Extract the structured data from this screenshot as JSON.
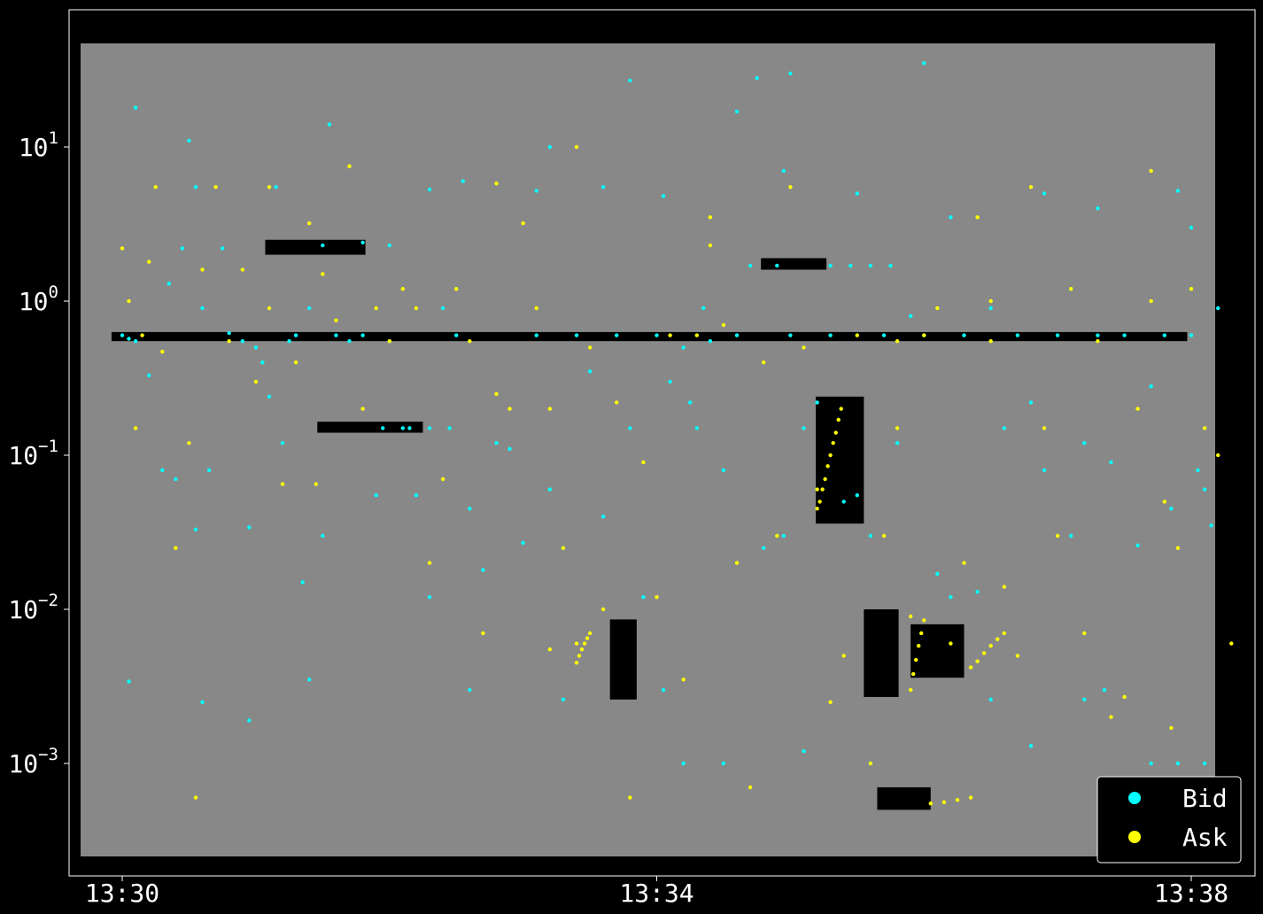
{
  "chart_data": {
    "type": "scatter",
    "title": "",
    "xlabel": "",
    "ylabel": "",
    "x_ticks": [
      "13:30",
      "13:34",
      "13:38"
    ],
    "y_scale": "log",
    "ylim": [
      0.0002,
      70
    ],
    "y_ticks": [
      {
        "value": 10,
        "base": "10",
        "exp": "1"
      },
      {
        "value": 1,
        "base": "10",
        "exp": "0"
      },
      {
        "value": 0.1,
        "base": "10",
        "exp": "−1"
      },
      {
        "value": 0.01,
        "base": "10",
        "exp": "−2"
      },
      {
        "value": 0.001,
        "base": "10",
        "exp": "−3"
      }
    ],
    "xlim_minutes": [
      -0.4,
      8.5
    ],
    "background": "#888888",
    "grid": false,
    "legend_position": "bottom-right",
    "series": [
      {
        "name": "Bid",
        "color": "#00ffff",
        "points": [
          [
            0.0,
            0.6
          ],
          [
            0.05,
            0.57
          ],
          [
            0.1,
            0.55
          ],
          [
            0.2,
            0.33
          ],
          [
            0.3,
            0.08
          ],
          [
            0.35,
            1.3
          ],
          [
            0.4,
            0.07
          ],
          [
            0.45,
            2.2
          ],
          [
            0.5,
            11.0
          ],
          [
            0.55,
            0.033
          ],
          [
            0.6,
            0.9
          ],
          [
            0.65,
            0.08
          ],
          [
            0.75,
            2.2
          ],
          [
            0.8,
            0.62
          ],
          [
            0.9,
            0.55
          ],
          [
            0.95,
            0.034
          ],
          [
            1.0,
            0.5
          ],
          [
            1.05,
            0.4
          ],
          [
            1.1,
            0.24
          ],
          [
            1.2,
            0.12
          ],
          [
            1.25,
            0.55
          ],
          [
            1.3,
            0.6
          ],
          [
            1.35,
            0.015
          ],
          [
            1.4,
            0.9
          ],
          [
            1.5,
            0.03
          ],
          [
            1.55,
            14.0
          ],
          [
            1.6,
            0.6
          ],
          [
            1.7,
            0.55
          ],
          [
            1.8,
            0.6
          ],
          [
            1.9,
            0.055
          ],
          [
            2.0,
            0.55
          ],
          [
            2.1,
            0.15
          ],
          [
            2.2,
            0.055
          ],
          [
            2.3,
            0.012
          ],
          [
            2.4,
            0.9
          ],
          [
            2.5,
            0.6
          ],
          [
            2.6,
            0.045
          ],
          [
            2.7,
            0.018
          ],
          [
            2.8,
            0.12
          ],
          [
            2.9,
            0.11
          ],
          [
            3.0,
            0.027
          ],
          [
            3.1,
            0.6
          ],
          [
            3.2,
            0.06
          ],
          [
            3.3,
            0.025
          ],
          [
            3.4,
            0.6
          ],
          [
            3.5,
            0.35
          ],
          [
            3.6,
            0.04
          ],
          [
            3.7,
            0.6
          ],
          [
            3.8,
            0.15
          ],
          [
            3.9,
            0.012
          ],
          [
            4.0,
            0.6
          ],
          [
            4.05,
            0.003
          ],
          [
            4.1,
            0.3
          ],
          [
            4.2,
            0.5
          ],
          [
            4.25,
            0.22
          ],
          [
            4.3,
            0.15
          ],
          [
            4.35,
            0.9
          ],
          [
            4.4,
            0.55
          ],
          [
            4.5,
            0.08
          ],
          [
            4.6,
            0.6
          ],
          [
            4.7,
            1.7
          ],
          [
            4.8,
            0.025
          ],
          [
            4.9,
            1.7
          ],
          [
            4.95,
            0.03
          ],
          [
            5.0,
            0.6
          ],
          [
            5.1,
            0.15
          ],
          [
            5.2,
            0.22
          ],
          [
            5.3,
            0.6
          ],
          [
            5.4,
            0.05
          ],
          [
            5.5,
            0.055
          ],
          [
            5.6,
            0.03
          ],
          [
            5.7,
            0.6
          ],
          [
            5.8,
            0.12
          ],
          [
            5.9,
            0.8
          ],
          [
            6.0,
            0.6
          ],
          [
            6.1,
            0.017
          ],
          [
            6.2,
            0.012
          ],
          [
            6.3,
            0.6
          ],
          [
            6.4,
            0.013
          ],
          [
            6.5,
            0.9
          ],
          [
            6.6,
            0.15
          ],
          [
            6.7,
            0.6
          ],
          [
            6.8,
            0.22
          ],
          [
            6.9,
            0.08
          ],
          [
            7.0,
            0.6
          ],
          [
            7.1,
            0.03
          ],
          [
            7.2,
            0.12
          ],
          [
            7.3,
            0.6
          ],
          [
            7.35,
            0.003
          ],
          [
            7.4,
            0.09
          ],
          [
            7.5,
            0.6
          ],
          [
            7.6,
            0.026
          ],
          [
            7.7,
            0.28
          ],
          [
            7.8,
            0.6
          ],
          [
            7.85,
            0.045
          ],
          [
            7.9,
            0.001
          ],
          [
            8.0,
            0.6
          ],
          [
            8.05,
            0.08
          ],
          [
            8.1,
            0.06
          ],
          [
            8.15,
            0.035
          ],
          [
            8.2,
            0.9
          ],
          [
            4.6,
            17.0
          ],
          [
            3.2,
            10.0
          ],
          [
            6.0,
            35.0
          ],
          [
            5.0,
            30.0
          ],
          [
            3.8,
            27.0
          ],
          [
            0.1,
            18.0
          ],
          [
            4.75,
            28.0
          ],
          [
            0.55,
            5.5
          ],
          [
            1.15,
            5.5
          ],
          [
            2.3,
            5.3
          ],
          [
            2.55,
            6.0
          ],
          [
            3.1,
            5.2
          ],
          [
            3.6,
            5.5
          ],
          [
            4.05,
            4.8
          ],
          [
            4.95,
            7.0
          ],
          [
            5.5,
            5.0
          ],
          [
            6.2,
            3.5
          ],
          [
            6.9,
            5.0
          ],
          [
            7.3,
            4.0
          ],
          [
            7.9,
            5.2
          ],
          [
            8.0,
            3.0
          ],
          [
            1.8,
            2.4
          ],
          [
            2.0,
            2.3
          ],
          [
            5.3,
            1.7
          ],
          [
            5.45,
            1.7
          ],
          [
            5.6,
            1.7
          ],
          [
            5.75,
            1.7
          ],
          [
            1.5,
            2.3
          ],
          [
            1.95,
            0.15
          ],
          [
            2.15,
            0.15
          ],
          [
            2.3,
            0.15
          ],
          [
            2.45,
            0.15
          ],
          [
            0.6,
            0.0025
          ],
          [
            1.4,
            0.0035
          ],
          [
            2.6,
            0.003
          ],
          [
            3.3,
            0.0026
          ],
          [
            4.5,
            0.001
          ],
          [
            5.1,
            0.0012
          ],
          [
            6.5,
            0.0026
          ],
          [
            7.2,
            0.0026
          ],
          [
            8.1,
            0.001
          ],
          [
            0.05,
            0.0034
          ],
          [
            0.95,
            0.0019
          ],
          [
            4.2,
            0.001
          ],
          [
            5.6,
            0.001
          ],
          [
            6.8,
            0.0013
          ],
          [
            7.7,
            0.001
          ]
        ]
      },
      {
        "name": "Ask",
        "color": "#ffff00",
        "points": [
          [
            0.0,
            2.2
          ],
          [
            0.05,
            1.0
          ],
          [
            0.1,
            0.15
          ],
          [
            0.15,
            0.6
          ],
          [
            0.2,
            1.8
          ],
          [
            0.25,
            5.5
          ],
          [
            0.3,
            0.47
          ],
          [
            0.4,
            0.025
          ],
          [
            0.5,
            0.12
          ],
          [
            0.55,
            0.0006
          ],
          [
            0.6,
            1.6
          ],
          [
            0.7,
            5.5
          ],
          [
            0.8,
            0.55
          ],
          [
            0.9,
            1.6
          ],
          [
            1.0,
            0.3
          ],
          [
            1.1,
            0.9
          ],
          [
            1.2,
            0.065
          ],
          [
            1.3,
            0.4
          ],
          [
            1.4,
            3.2
          ],
          [
            1.45,
            0.065
          ],
          [
            1.5,
            1.5
          ],
          [
            1.6,
            0.75
          ],
          [
            1.7,
            7.5
          ],
          [
            1.8,
            0.2
          ],
          [
            1.9,
            0.9
          ],
          [
            2.0,
            0.55
          ],
          [
            2.1,
            1.2
          ],
          [
            2.2,
            0.9
          ],
          [
            2.3,
            0.02
          ],
          [
            2.4,
            0.07
          ],
          [
            2.5,
            1.2
          ],
          [
            2.6,
            0.55
          ],
          [
            2.7,
            0.007
          ],
          [
            2.8,
            0.25
          ],
          [
            2.9,
            0.2
          ],
          [
            3.0,
            3.2
          ],
          [
            3.1,
            0.9
          ],
          [
            3.2,
            0.2
          ],
          [
            3.3,
            0.025
          ],
          [
            3.4,
            0.006
          ],
          [
            3.5,
            0.5
          ],
          [
            3.6,
            0.01
          ],
          [
            3.7,
            0.22
          ],
          [
            3.8,
            0.0006
          ],
          [
            3.9,
            0.09
          ],
          [
            4.0,
            0.012
          ],
          [
            4.1,
            0.6
          ],
          [
            4.2,
            0.0035
          ],
          [
            4.3,
            0.6
          ],
          [
            4.4,
            2.3
          ],
          [
            4.5,
            0.7
          ],
          [
            4.6,
            0.02
          ],
          [
            4.7,
            0.0007
          ],
          [
            4.8,
            0.4
          ],
          [
            4.9,
            0.03
          ],
          [
            5.0,
            5.5
          ],
          [
            5.1,
            0.5
          ],
          [
            5.2,
            0.06
          ],
          [
            5.3,
            0.0025
          ],
          [
            5.4,
            0.005
          ],
          [
            5.5,
            0.6
          ],
          [
            5.6,
            0.001
          ],
          [
            5.7,
            0.03
          ],
          [
            5.8,
            0.15
          ],
          [
            5.9,
            0.009
          ],
          [
            6.0,
            0.6
          ],
          [
            6.1,
            0.9
          ],
          [
            6.2,
            0.006
          ],
          [
            6.3,
            0.02
          ],
          [
            6.4,
            3.5
          ],
          [
            6.5,
            0.55
          ],
          [
            6.6,
            0.014
          ],
          [
            6.7,
            0.005
          ],
          [
            6.8,
            5.5
          ],
          [
            6.9,
            0.15
          ],
          [
            7.0,
            0.03
          ],
          [
            7.1,
            1.2
          ],
          [
            7.2,
            0.007
          ],
          [
            7.3,
            0.55
          ],
          [
            7.4,
            0.002
          ],
          [
            7.5,
            0.0027
          ],
          [
            7.6,
            0.2
          ],
          [
            7.7,
            7.0
          ],
          [
            7.8,
            0.05
          ],
          [
            7.85,
            0.0017
          ],
          [
            7.9,
            0.025
          ],
          [
            8.0,
            1.2
          ],
          [
            8.1,
            0.15
          ],
          [
            8.15,
            0.0003
          ],
          [
            8.2,
            0.1
          ],
          [
            8.3,
            0.006
          ],
          [
            3.4,
            0.0045
          ],
          [
            3.42,
            0.005
          ],
          [
            3.44,
            0.0055
          ],
          [
            3.46,
            0.006
          ],
          [
            3.48,
            0.0065
          ],
          [
            3.5,
            0.007
          ],
          [
            5.2,
            0.045
          ],
          [
            5.22,
            0.05
          ],
          [
            5.24,
            0.06
          ],
          [
            5.26,
            0.07
          ],
          [
            5.28,
            0.085
          ],
          [
            5.3,
            0.1
          ],
          [
            5.32,
            0.12
          ],
          [
            5.34,
            0.14
          ],
          [
            5.36,
            0.17
          ],
          [
            5.38,
            0.2
          ],
          [
            5.9,
            0.003
          ],
          [
            5.92,
            0.0038
          ],
          [
            5.94,
            0.0047
          ],
          [
            5.96,
            0.0058
          ],
          [
            5.98,
            0.007
          ],
          [
            6.0,
            0.0085
          ],
          [
            6.35,
            0.0042
          ],
          [
            6.4,
            0.0046
          ],
          [
            6.45,
            0.0052
          ],
          [
            6.5,
            0.0058
          ],
          [
            6.55,
            0.0064
          ],
          [
            6.6,
            0.007
          ],
          [
            6.05,
            0.00055
          ],
          [
            6.15,
            0.00056
          ],
          [
            6.25,
            0.00058
          ],
          [
            6.35,
            0.0006
          ],
          [
            3.4,
            10.0
          ],
          [
            1.1,
            5.5
          ],
          [
            2.8,
            5.8
          ],
          [
            4.4,
            3.5
          ],
          [
            5.8,
            0.55
          ],
          [
            6.5,
            1.0
          ],
          [
            7.7,
            1.0
          ],
          [
            3.2,
            0.0055
          ]
        ]
      }
    ],
    "highlight_boxes": [
      {
        "x0": 1.07,
        "x1": 1.82,
        "y0": 2.0,
        "y1": 2.5
      },
      {
        "x0": 1.46,
        "x1": 2.25,
        "y0": 0.14,
        "y1": 0.165
      },
      {
        "x0": -0.08,
        "x1": 7.97,
        "y0": 0.55,
        "y1": 0.63
      },
      {
        "x0": 4.78,
        "x1": 5.27,
        "y0": 1.6,
        "y1": 1.9
      },
      {
        "x0": 5.19,
        "x1": 5.55,
        "y0": 0.036,
        "y1": 0.24
      },
      {
        "x0": 3.65,
        "x1": 3.85,
        "y0": 0.0026,
        "y1": 0.0086
      },
      {
        "x0": 5.55,
        "x1": 5.81,
        "y0": 0.0027,
        "y1": 0.01
      },
      {
        "x0": 5.9,
        "x1": 6.3,
        "y0": 0.0036,
        "y1": 0.008
      },
      {
        "x0": 5.65,
        "x1": 6.05,
        "y0": 0.0005,
        "y1": 0.0007
      }
    ]
  },
  "legend": {
    "items": [
      {
        "label": "Bid",
        "color": "#00ffff"
      },
      {
        "label": "Ask",
        "color": "#ffff00"
      }
    ]
  }
}
